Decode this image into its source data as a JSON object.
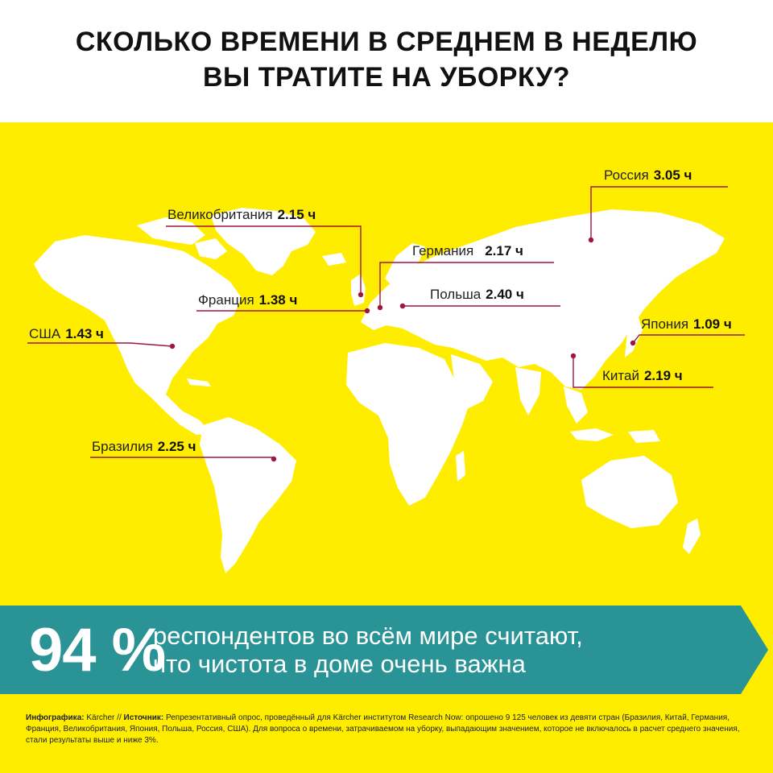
{
  "title": {
    "line1": "СКОЛЬКО ВРЕМЕНИ В СРЕДНЕМ В НЕДЕЛЮ",
    "line2": "ВЫ ТРАТИТЕ НА УБОРКУ?"
  },
  "colors": {
    "background": "#ffed00",
    "land": "#ffffff",
    "leader": "#a0153e",
    "banner": "#2a9396"
  },
  "countries": [
    {
      "name": "Россия",
      "value": "3.05 ч"
    },
    {
      "name": "Великобритания",
      "value": "2.15 ч"
    },
    {
      "name": "Германия",
      "value": "2.17 ч"
    },
    {
      "name": "Франция",
      "value": "1.38 ч"
    },
    {
      "name": "Польша",
      "value": "2.40 ч"
    },
    {
      "name": "США",
      "value": "1.43 ч"
    },
    {
      "name": "Япония",
      "value": "1.09 ч"
    },
    {
      "name": "Китай",
      "value": "2.19 ч"
    },
    {
      "name": "Бразилия",
      "value": "2.25 ч"
    }
  ],
  "banner": {
    "percent": "94 %",
    "line1": "респондентов во всём мире считают,",
    "line2": "что чистота в доме очень важна"
  },
  "footnote": {
    "infographic_label": "Инфографика:",
    "infographic_value": "Kärcher //",
    "source_label": "Источник:",
    "source_text": "Репрезентативный опрос, проведённый для Kärcher институтом Research Now: опрошено 9 125 человек из девяти стран (Бразилия, Китай, Германия, Франция, Великобритания, Япония, Польша, Россия, США). Для вопроса о времени, затрачиваемом на уборку, выпадающим значением, которое не включалось в расчет среднего значения, стали результаты выше и ниже 3%."
  }
}
